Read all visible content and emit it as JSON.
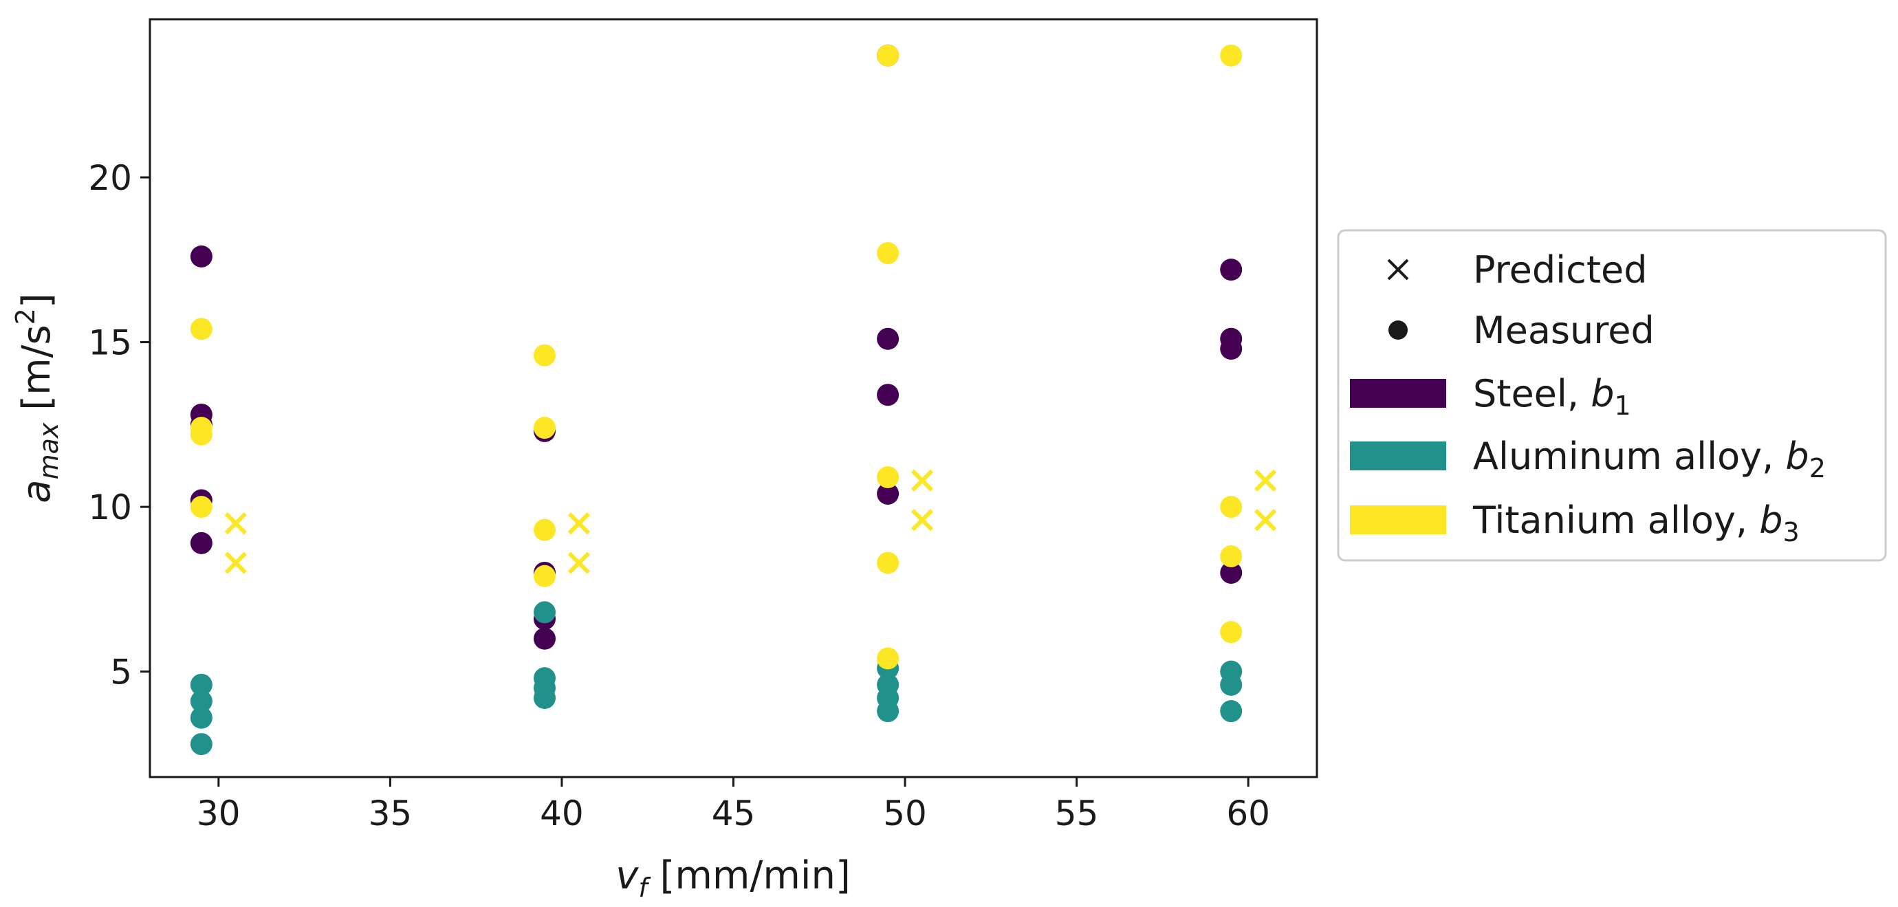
{
  "chart_data": {
    "type": "scatter",
    "xlabel": {
      "base": "v",
      "sub": "f",
      "rest": " [mm/min]"
    },
    "ylabel": {
      "base": "a",
      "sub": "max",
      "rest": " [m/s",
      "sup": "2",
      "close": "]"
    },
    "xlim": [
      28,
      62
    ],
    "ylim": [
      1.8,
      24.8
    ],
    "xticks": [
      30,
      35,
      40,
      45,
      50,
      55,
      60
    ],
    "yticks": [
      5,
      10,
      15,
      20
    ],
    "colors": {
      "steel": "#440154",
      "aluminum": "#21918c",
      "titanium": "#fde725",
      "text": "#1a1a1a"
    },
    "series": [
      {
        "name": "Steel",
        "color_key": "steel",
        "marker": "o",
        "points": [
          [
            29.5,
            17.6
          ],
          [
            29.5,
            12.8
          ],
          [
            29.5,
            12.5
          ],
          [
            29.5,
            10.2
          ],
          [
            29.5,
            8.9
          ],
          [
            39.5,
            12.3
          ],
          [
            39.5,
            8.0
          ],
          [
            39.5,
            6.6
          ],
          [
            39.5,
            6.0
          ],
          [
            49.5,
            23.7
          ],
          [
            49.5,
            15.1
          ],
          [
            49.5,
            13.4
          ],
          [
            49.5,
            10.4
          ],
          [
            59.5,
            17.2
          ],
          [
            59.5,
            15.1
          ],
          [
            59.5,
            14.8
          ],
          [
            59.5,
            8.0
          ]
        ]
      },
      {
        "name": "Aluminum alloy",
        "color_key": "aluminum",
        "marker": "o",
        "points": [
          [
            29.5,
            4.6
          ],
          [
            29.5,
            4.1
          ],
          [
            29.5,
            3.6
          ],
          [
            29.5,
            2.8
          ],
          [
            39.5,
            6.8
          ],
          [
            39.5,
            4.8
          ],
          [
            39.5,
            4.5
          ],
          [
            39.5,
            4.2
          ],
          [
            49.5,
            5.1
          ],
          [
            49.5,
            4.6
          ],
          [
            49.5,
            4.2
          ],
          [
            49.5,
            3.8
          ],
          [
            59.5,
            5.0
          ],
          [
            59.5,
            4.6
          ],
          [
            59.5,
            3.8
          ]
        ]
      },
      {
        "name": "Titanium alloy",
        "color_key": "titanium",
        "marker": "o",
        "points": [
          [
            29.5,
            15.4
          ],
          [
            29.5,
            12.4
          ],
          [
            29.5,
            12.2
          ],
          [
            29.5,
            10.0
          ],
          [
            39.5,
            14.6
          ],
          [
            39.5,
            12.4
          ],
          [
            39.5,
            9.3
          ],
          [
            39.5,
            7.9
          ],
          [
            49.5,
            23.7
          ],
          [
            49.5,
            17.7
          ],
          [
            49.5,
            10.9
          ],
          [
            49.5,
            8.3
          ],
          [
            49.5,
            5.4
          ],
          [
            59.5,
            23.7
          ],
          [
            59.5,
            10.0
          ],
          [
            59.5,
            8.5
          ],
          [
            59.5,
            6.2
          ]
        ]
      },
      {
        "name": "Predicted",
        "color_key": "titanium",
        "marker": "x",
        "points": [
          [
            30.5,
            9.5
          ],
          [
            30.5,
            8.3
          ],
          [
            40.5,
            9.5
          ],
          [
            40.5,
            8.3
          ],
          [
            50.5,
            10.8
          ],
          [
            50.5,
            9.6
          ],
          [
            60.5,
            10.8
          ],
          [
            60.5,
            9.6
          ]
        ]
      }
    ],
    "legend": {
      "placement": "outside-right",
      "entries": [
        {
          "type": "marker-x",
          "label": "Predicted"
        },
        {
          "type": "marker-dot",
          "label": "Measured"
        },
        {
          "type": "patch",
          "color_key": "steel",
          "label": "Steel, ",
          "math": "b",
          "sub": "1"
        },
        {
          "type": "patch",
          "color_key": "aluminum",
          "label": "Aluminum alloy, ",
          "math": "b",
          "sub": "2"
        },
        {
          "type": "patch",
          "color_key": "titanium",
          "label": "Titanium alloy, ",
          "math": "b",
          "sub": "3"
        }
      ]
    }
  }
}
